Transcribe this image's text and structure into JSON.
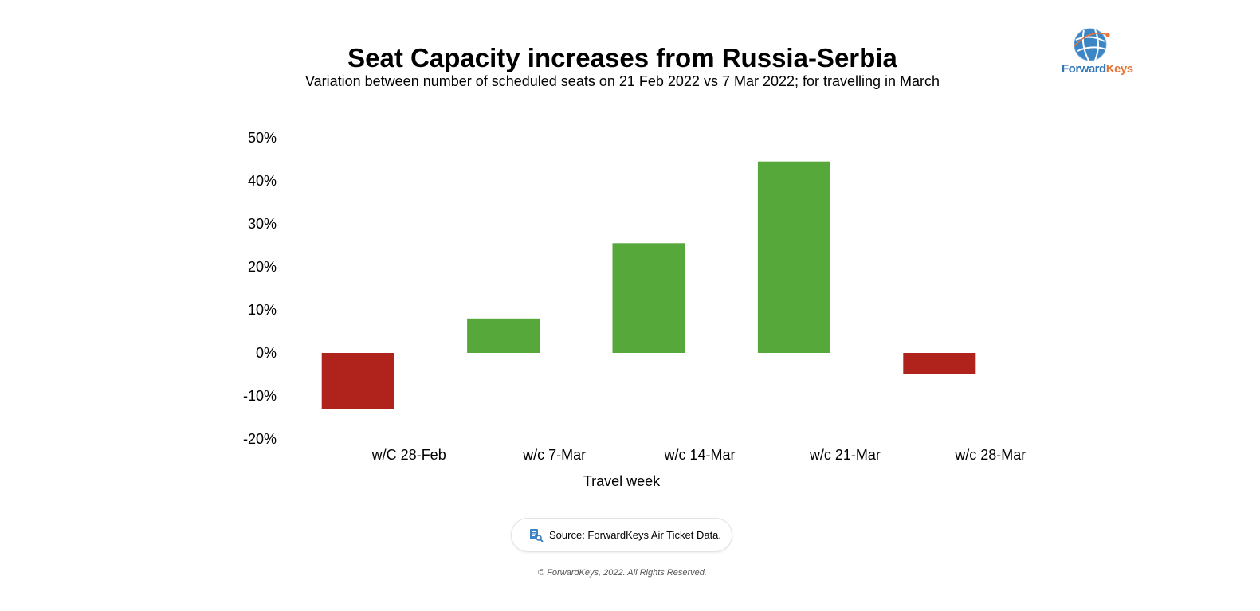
{
  "chart_data": {
    "type": "bar",
    "title": "Seat Capacity increases from Russia-Serbia",
    "subtitle": "Variation between number of scheduled seats on 21 Feb 2022 vs 7 Mar 2022; for travelling in March",
    "xlabel": "Travel week",
    "ylabel": "",
    "categories": [
      "w/C 28-Feb",
      "w/c 7-Mar",
      "w/c 14-Mar",
      "w/c 21-Mar",
      "w/c 28-Mar"
    ],
    "values": [
      -13,
      8,
      25.5,
      44.5,
      -5
    ],
    "ylim": [
      -20,
      50
    ],
    "yticks": [
      -20,
      -10,
      0,
      10,
      20,
      30,
      40,
      50
    ],
    "ytick_labels": [
      "-20%",
      "-10%",
      "0%",
      "10%",
      "20%",
      "30%",
      "40%",
      "50%"
    ],
    "grid": false,
    "legend": "none",
    "colors": {
      "positive": "#57a83b",
      "negative": "#b0231c"
    }
  },
  "logo": {
    "word_part1": "Forward",
    "word_part2": "Keys",
    "brand_blue": "#2f77b8",
    "brand_orange": "#e4763a"
  },
  "source": {
    "icon": "document-search-icon",
    "text": "Source: ForwardKeys Air Ticket Data."
  },
  "copyright": "© ForwardKeys, 2022. All Rights Reserved."
}
